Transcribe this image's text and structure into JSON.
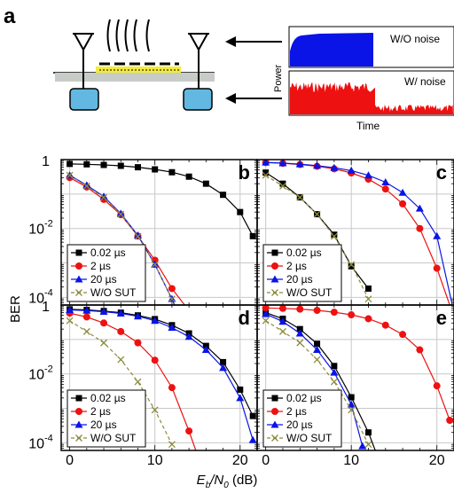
{
  "panel_a": {
    "letter": "a",
    "ylabel": "Power",
    "xlabel": "Time",
    "trace_top_label": "W/O noise",
    "trace_bottom_label": "W/ noise",
    "colors": {
      "blue": "#0a14e6",
      "red": "#ee1111",
      "yellow": "#f3ea3c",
      "cyan": "#62b8e0"
    }
  },
  "shared": {
    "ylabel": "BER",
    "xlabel_main": "E",
    "xlabel_sub1": "b",
    "xlabel_slash": "/N",
    "xlabel_sub2": "0",
    "xlabel_unit": " (dB)",
    "x_ticks": [
      "0",
      "10",
      "20"
    ],
    "y_ticks": {
      "top": [
        "1",
        "10",
        "-2",
        "10",
        "-4"
      ],
      "bottom": [
        "1",
        "10",
        "-2",
        "10",
        "-4"
      ]
    },
    "legend": [
      "0.02 µs",
      "2 µs",
      "20 µs",
      "W/O SUT"
    ],
    "series_colors": {
      "0.02 µs": "#000000",
      "2 µs": "#ee1111",
      "20 µs": "#0a14e6",
      "W/O SUT": "#8c8c3c"
    }
  },
  "chart_data": [
    {
      "panel": "b",
      "type": "line",
      "x_unit": "dB",
      "ylog": true,
      "xlim": [
        -1,
        22
      ],
      "ylim": [
        6e-05,
        1
      ],
      "series": [
        {
          "name": "0.02 µs",
          "x": [
            0,
            2,
            4,
            6,
            8,
            10,
            12,
            14,
            16,
            18,
            20,
            21.5
          ],
          "y": [
            0.75,
            0.73,
            0.7,
            0.66,
            0.6,
            0.52,
            0.43,
            0.32,
            0.2,
            0.095,
            0.03,
            0.006
          ]
        },
        {
          "name": "2 µs",
          "x": [
            0,
            2,
            4,
            6,
            8,
            10,
            12,
            13.5
          ],
          "y": [
            0.3,
            0.16,
            0.07,
            0.025,
            0.006,
            0.0012,
            0.00018,
            6e-05
          ]
        },
        {
          "name": "20 µs",
          "x": [
            0,
            2,
            4,
            6,
            8,
            10,
            12,
            12.3
          ],
          "y": [
            0.35,
            0.18,
            0.085,
            0.027,
            0.0063,
            0.0009,
            9e-05,
            6e-05
          ]
        },
        {
          "name": "W/O SUT",
          "x": [
            0,
            2,
            4,
            6,
            8,
            10,
            12
          ],
          "y": [
            0.35,
            0.17,
            0.08,
            0.026,
            0.0059,
            0.0009,
            9e-05
          ]
        }
      ]
    },
    {
      "panel": "c",
      "type": "line",
      "x_unit": "dB",
      "ylog": true,
      "xlim": [
        -1,
        22
      ],
      "ylim": [
        6e-05,
        1
      ],
      "series": [
        {
          "name": "0.02 µs",
          "x": [
            0,
            2,
            4,
            6,
            8,
            10,
            12
          ],
          "y": [
            0.42,
            0.2,
            0.08,
            0.026,
            0.0066,
            0.0008,
            0.00018
          ]
        },
        {
          "name": "2 µs",
          "x": [
            0,
            2,
            4,
            6,
            8,
            10,
            12,
            14,
            16,
            18,
            20,
            21.5
          ],
          "y": [
            0.82,
            0.78,
            0.72,
            0.64,
            0.54,
            0.41,
            0.27,
            0.14,
            0.052,
            0.01,
            0.0007,
            6e-05
          ]
        },
        {
          "name": "20 µs",
          "x": [
            0,
            2,
            4,
            6,
            8,
            10,
            12,
            14,
            16,
            18,
            20,
            21.8
          ],
          "y": [
            0.83,
            0.79,
            0.74,
            0.67,
            0.58,
            0.48,
            0.35,
            0.22,
            0.11,
            0.038,
            0.006,
            6e-05
          ]
        },
        {
          "name": "W/O SUT",
          "x": [
            0,
            2,
            4,
            6,
            8,
            10,
            12
          ],
          "y": [
            0.35,
            0.17,
            0.08,
            0.026,
            0.0059,
            0.0009,
            9e-05
          ]
        }
      ]
    },
    {
      "panel": "d",
      "type": "line",
      "x_unit": "dB",
      "ylog": true,
      "xlim": [
        -1,
        22
      ],
      "ylim": [
        6e-05,
        1
      ],
      "series": [
        {
          "name": "0.02 µs",
          "x": [
            0,
            2,
            4,
            6,
            8,
            10,
            12,
            14,
            16,
            18,
            20,
            21.5
          ],
          "y": [
            0.75,
            0.72,
            0.67,
            0.6,
            0.5,
            0.39,
            0.26,
            0.15,
            0.065,
            0.022,
            0.0035,
            0.0006
          ]
        },
        {
          "name": "2 µs",
          "x": [
            0,
            2,
            4,
            6,
            8,
            10,
            12,
            14,
            14.8
          ],
          "y": [
            0.58,
            0.45,
            0.3,
            0.17,
            0.08,
            0.025,
            0.004,
            0.00022,
            6e-05
          ]
        },
        {
          "name": "20 µs",
          "x": [
            0,
            2,
            4,
            6,
            8,
            10,
            12,
            14,
            16,
            18,
            20,
            21.5
          ],
          "y": [
            0.72,
            0.69,
            0.64,
            0.57,
            0.47,
            0.35,
            0.22,
            0.12,
            0.05,
            0.015,
            0.002,
            0.00012
          ]
        },
        {
          "name": "W/O SUT",
          "x": [
            0,
            2,
            4,
            6,
            8,
            10,
            12
          ],
          "y": [
            0.35,
            0.17,
            0.08,
            0.026,
            0.0059,
            0.0009,
            9e-05
          ]
        }
      ]
    },
    {
      "panel": "e",
      "type": "line",
      "x_unit": "dB",
      "ylog": true,
      "xlim": [
        -1,
        22
      ],
      "ylim": [
        6e-05,
        1
      ],
      "series": [
        {
          "name": "0.02 µs",
          "x": [
            0,
            2,
            4,
            6,
            8,
            10,
            12,
            12.8
          ],
          "y": [
            0.6,
            0.4,
            0.2,
            0.075,
            0.017,
            0.0021,
            0.0002,
            6e-05
          ]
        },
        {
          "name": "2 µs",
          "x": [
            0,
            2,
            4,
            6,
            8,
            10,
            12,
            14,
            16,
            18,
            20,
            21.5
          ],
          "y": [
            0.82,
            0.8,
            0.76,
            0.7,
            0.62,
            0.52,
            0.4,
            0.26,
            0.14,
            0.05,
            0.0045,
            0.00045
          ]
        },
        {
          "name": "20 µs",
          "x": [
            0,
            2,
            4,
            6,
            8,
            10,
            11.3
          ],
          "y": [
            0.55,
            0.33,
            0.15,
            0.05,
            0.011,
            0.0013,
            8e-05
          ]
        },
        {
          "name": "W/O SUT",
          "x": [
            0,
            2,
            4,
            6,
            8,
            10,
            12
          ],
          "y": [
            0.35,
            0.17,
            0.08,
            0.026,
            0.0059,
            0.0009,
            9e-05
          ]
        }
      ]
    }
  ]
}
